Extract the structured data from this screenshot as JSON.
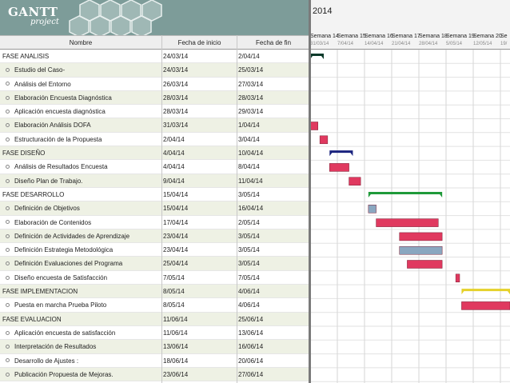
{
  "app": {
    "logo": "GANTT",
    "logo_sub": "project"
  },
  "table": {
    "headers": {
      "name": "Nombre",
      "start": "Fecha de inicio",
      "end": "Fecha de fin"
    },
    "rows": [
      {
        "name": "FASE ANALISIS",
        "start": "24/03/14",
        "end": "2/04/14",
        "level": 0
      },
      {
        "name": "Estudio del Caso-",
        "start": "24/03/14",
        "end": "25/03/14",
        "level": 1
      },
      {
        "name": "Análisis del Entorno",
        "start": "26/03/14",
        "end": "27/03/14",
        "level": 1
      },
      {
        "name": "Elaboración Encuesta Diagnóstica",
        "start": "28/03/14",
        "end": "28/03/14",
        "level": 1
      },
      {
        "name": "Aplicación encuesta diagnóstica",
        "start": "28/03/14",
        "end": "29/03/14",
        "level": 1
      },
      {
        "name": "Elaboración Análisis DOFA",
        "start": "31/03/14",
        "end": "1/04/14",
        "level": 1
      },
      {
        "name": "Estructuración de la Propuesta",
        "start": "2/04/14",
        "end": "3/04/14",
        "level": 1
      },
      {
        "name": "FASE DISEÑO",
        "start": "4/04/14",
        "end": "10/04/14",
        "level": 0
      },
      {
        "name": "Análisis de Resultados Encuesta",
        "start": "4/04/14",
        "end": "8/04/14",
        "level": 1
      },
      {
        "name": "Diseño Plan de Trabajo.",
        "start": "9/04/14",
        "end": "11/04/14",
        "level": 1
      },
      {
        "name": "FASE DESARROLLO",
        "start": "15/04/14",
        "end": "3/05/14",
        "level": 0
      },
      {
        "name": "Definición de Objetivos",
        "start": "15/04/14",
        "end": "16/04/14",
        "level": 1
      },
      {
        "name": "Elaboración de Contenidos",
        "start": "17/04/14",
        "end": "2/05/14",
        "level": 1
      },
      {
        "name": "Definición de Actividades de Aprendizaje",
        "start": "23/04/14",
        "end": "3/05/14",
        "level": 1
      },
      {
        "name": "Definición Estrategia Metodológica",
        "start": "23/04/14",
        "end": "3/05/14",
        "level": 1
      },
      {
        "name": "Definición Evaluaciones del Programa",
        "start": "25/04/14",
        "end": "3/05/14",
        "level": 1
      },
      {
        "name": "Diseño encuesta de Satisfacción",
        "start": "7/05/14",
        "end": "7/05/14",
        "level": 1
      },
      {
        "name": "FASE IMPLEMENTACION",
        "start": "8/05/14",
        "end": "4/06/14",
        "level": 0
      },
      {
        "name": "Puesta en marcha Prueba Piloto",
        "start": "8/05/14",
        "end": "4/06/14",
        "level": 1
      },
      {
        "name": "FASE EVALUACION",
        "start": "11/06/14",
        "end": "25/06/14",
        "level": 0
      },
      {
        "name": "Aplicación encuesta de satisfacción",
        "start": "11/06/14",
        "end": "13/06/14",
        "level": 1
      },
      {
        "name": "Interpretación de Resultados",
        "start": "13/06/14",
        "end": "16/06/14",
        "level": 1
      },
      {
        "name": "Desarrollo de Ajustes :",
        "start": "18/06/14",
        "end": "20/06/14",
        "level": 1
      },
      {
        "name": "Publicación Propuesta de Mejoras.",
        "start": "23/06/14",
        "end": "27/06/14",
        "level": 1
      }
    ]
  },
  "timeline": {
    "year": "2014",
    "weeks": [
      "Semana 14",
      "Semana 15",
      "Semana 16",
      "Semana 17",
      "Semana 18",
      "Semana 19",
      "Semana 20",
      "Se"
    ],
    "days": [
      "31/03/14",
      "7/04/14",
      "14/04/14",
      "21/04/14",
      "28/04/14",
      "5/05/14",
      "12/05/14",
      "19/"
    ]
  },
  "colors": {
    "task": "#e0395f",
    "task_alt": "#8aa7c0",
    "phase_design": "#1a237e",
    "phase_dev": "#1f9a3a",
    "phase_analysis": "#0a3a2a",
    "phase_impl": "#e5d12a"
  },
  "bars": [
    {
      "row": 0,
      "type": "phase",
      "start": 24.0,
      "end": 27.5,
      "color": "phase_analysis"
    },
    {
      "row": 1,
      "type": "tick",
      "start": 24.0
    },
    {
      "row": 2,
      "type": "tick",
      "start": 24.0
    },
    {
      "row": 3,
      "type": "tick",
      "start": 24.0
    },
    {
      "row": 4,
      "type": "tick",
      "start": 24.0
    },
    {
      "row": 5,
      "type": "task",
      "start": 24.0,
      "end": 26.0,
      "color": "task"
    },
    {
      "row": 6,
      "type": "task",
      "start": 26.5,
      "end": 28.5,
      "color": "task"
    },
    {
      "row": 7,
      "type": "phase",
      "start": 29.0,
      "end": 35.0,
      "color": "phase_design"
    },
    {
      "row": 8,
      "type": "task",
      "start": 29.0,
      "end": 34.0,
      "color": "task"
    },
    {
      "row": 9,
      "type": "task",
      "start": 34.0,
      "end": 37.0,
      "color": "task"
    },
    {
      "row": 10,
      "type": "phase",
      "start": 39.0,
      "end": 58.0,
      "color": "phase_dev"
    },
    {
      "row": 11,
      "type": "task",
      "start": 39.0,
      "end": 41.0,
      "color": "task_alt"
    },
    {
      "row": 12,
      "type": "task",
      "start": 41.0,
      "end": 57.0,
      "color": "task"
    },
    {
      "row": 13,
      "type": "task",
      "start": 47.0,
      "end": 58.0,
      "color": "task"
    },
    {
      "row": 14,
      "type": "task",
      "start": 47.0,
      "end": 58.0,
      "color": "task_alt"
    },
    {
      "row": 15,
      "type": "task",
      "start": 49.0,
      "end": 58.0,
      "color": "task"
    },
    {
      "row": 16,
      "type": "task",
      "start": 61.5,
      "end": 62.5,
      "color": "task"
    },
    {
      "row": 17,
      "type": "phase",
      "start": 63.0,
      "end": 90.0,
      "color": "phase_impl"
    },
    {
      "row": 18,
      "type": "task",
      "start": 63.0,
      "end": 90.0,
      "color": "task"
    }
  ]
}
